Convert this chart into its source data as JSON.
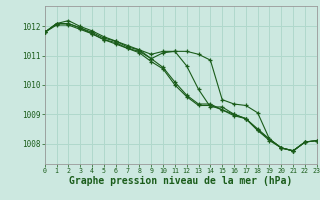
{
  "bg_color": "#cce8e0",
  "grid_color": "#b0d8cc",
  "line_color": "#1a5c1a",
  "marker_color": "#1a5c1a",
  "xlabel": "Graphe pression niveau de la mer (hPa)",
  "xlabel_fontsize": 7.0,
  "ytick_labels": [
    "1008",
    "1009",
    "1010",
    "1011",
    "1012"
  ],
  "yticks": [
    1008,
    1009,
    1010,
    1011,
    1012
  ],
  "ylim": [
    1007.3,
    1012.7
  ],
  "xlim": [
    0,
    23
  ],
  "xticks": [
    0,
    1,
    2,
    3,
    4,
    5,
    6,
    7,
    8,
    9,
    10,
    11,
    12,
    13,
    14,
    15,
    16,
    17,
    18,
    19,
    20,
    21,
    22,
    23
  ],
  "series": [
    [
      1011.8,
      1012.1,
      1012.2,
      1012.0,
      1011.85,
      1011.65,
      1011.5,
      1011.35,
      1011.2,
      1011.05,
      1011.15,
      1011.15,
      1011.15,
      1011.05,
      1010.85,
      1009.5,
      1009.35,
      1009.3,
      1009.05,
      1008.15,
      1007.85,
      1007.75,
      1008.05,
      null
    ],
    [
      1011.8,
      1012.1,
      1012.1,
      1011.95,
      1011.75,
      1011.55,
      1011.45,
      1011.25,
      1011.15,
      1010.9,
      1010.6,
      1010.1,
      1009.65,
      1009.35,
      1009.35,
      1009.15,
      1009.0,
      1008.85,
      1008.5,
      1008.15,
      1007.85,
      1007.75,
      1008.05,
      1008.1
    ],
    [
      1011.8,
      1012.05,
      1012.05,
      1011.9,
      1011.75,
      1011.55,
      1011.4,
      1011.25,
      1011.1,
      1010.8,
      1010.55,
      1010.0,
      1009.6,
      1009.3,
      1009.3,
      1009.15,
      1008.95,
      1008.85,
      1008.45,
      1008.1,
      1007.85,
      1007.75,
      1008.05,
      1008.1
    ],
    [
      1011.8,
      1012.1,
      1012.1,
      1011.95,
      1011.8,
      1011.6,
      1011.5,
      1011.3,
      1011.2,
      1010.9,
      1011.1,
      1011.15,
      1010.65,
      1009.85,
      1009.25,
      1009.25,
      1009.0,
      1008.85,
      1008.45,
      1008.15,
      1007.85,
      1007.75,
      1008.05,
      1008.1
    ]
  ]
}
